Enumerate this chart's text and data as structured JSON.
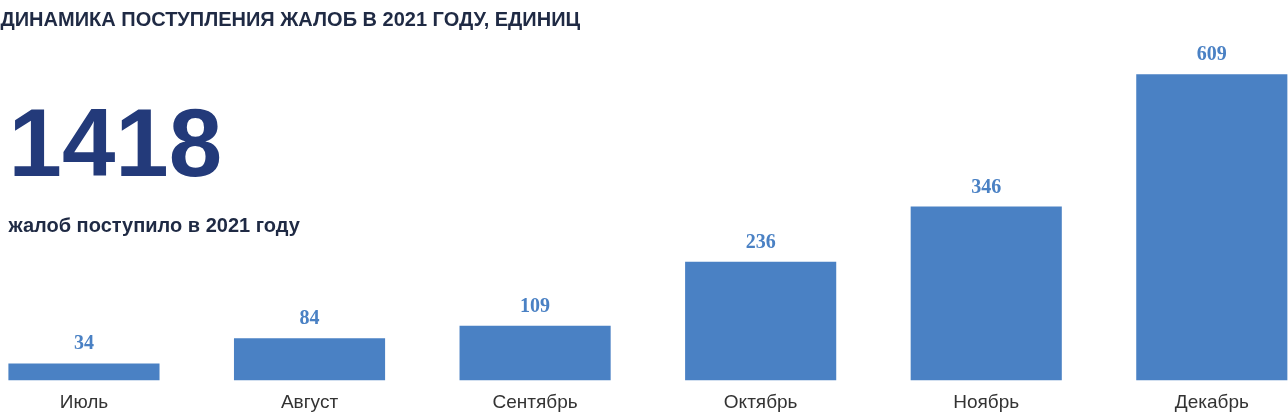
{
  "chart_data": {
    "type": "bar",
    "title": "ДИНАМИКА ПОСТУПЛЕНИЯ ЖАЛОБ В 2021 ГОДУ, ЕДИНИЦ",
    "annotations": [
      "1418",
      "жалоб поступило в 2021 году"
    ],
    "categories": [
      "Июль",
      "Август",
      "Сентябрь",
      "Октябрь",
      "Ноябрь",
      "Декабрь"
    ],
    "values": [
      34,
      84,
      109,
      236,
      346,
      609
    ],
    "color": "#4a81c4",
    "data_labels": true,
    "grid": false
  }
}
